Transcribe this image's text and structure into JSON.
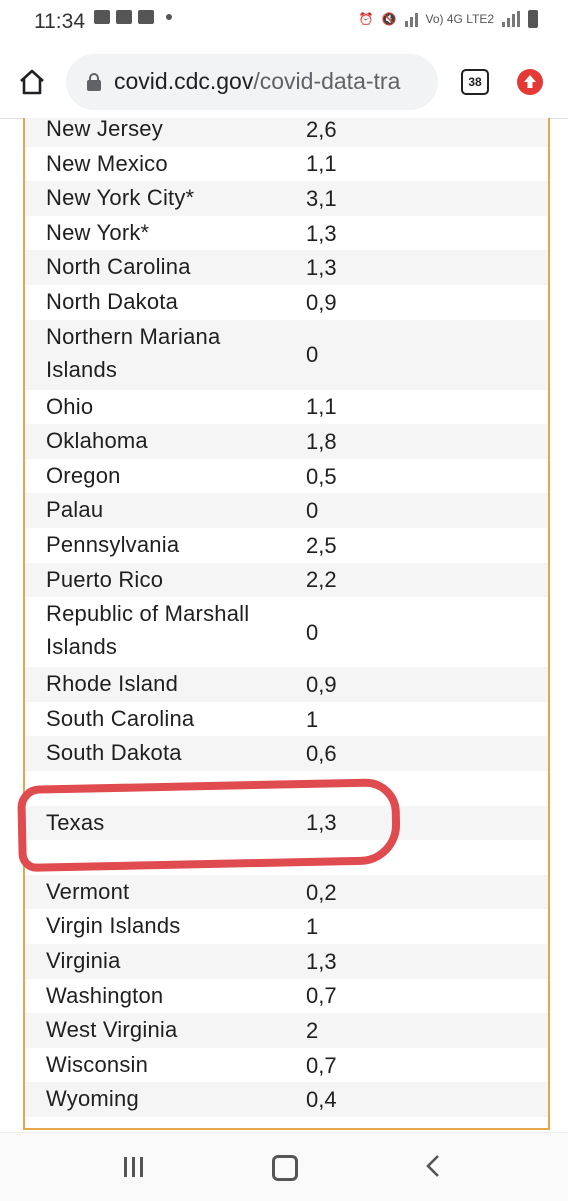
{
  "status_bar": {
    "time": "11:34",
    "network": "Vo) 4G LTE2"
  },
  "browser": {
    "url_domain": "covid.cdc.gov",
    "url_path": "/covid-data-tra",
    "tab_count": "38"
  },
  "table": {
    "rows": [
      {
        "name": "New Jersey",
        "value": "2,6"
      },
      {
        "name": "New Mexico",
        "value": "1,1"
      },
      {
        "name": "New York City*",
        "value": "3,1"
      },
      {
        "name": "New York*",
        "value": "1,3"
      },
      {
        "name": "North Carolina",
        "value": "1,3"
      },
      {
        "name": "North Dakota",
        "value": "0,9"
      },
      {
        "name": "Northern Mariana",
        "name2": "Islands",
        "value": "0"
      },
      {
        "name": "Ohio",
        "value": "1,1"
      },
      {
        "name": "Oklahoma",
        "value": "1,8"
      },
      {
        "name": "Oregon",
        "value": "0,5"
      },
      {
        "name": "Palau",
        "value": "0"
      },
      {
        "name": "Pennsylvania",
        "value": "2,5"
      },
      {
        "name": "Puerto Rico",
        "value": "2,2"
      },
      {
        "name": "Republic of Marshall",
        "name2": "Islands",
        "value": "0"
      },
      {
        "name": "Rhode Island",
        "value": "0,9"
      },
      {
        "name": "South Carolina",
        "value": "1"
      },
      {
        "name": "South Dakota",
        "value": "0,6"
      },
      {
        "name": "",
        "value": ""
      },
      {
        "name": "Texas",
        "value": "1,3"
      },
      {
        "name": "",
        "value": ""
      },
      {
        "name": "Vermont",
        "value": "0,2"
      },
      {
        "name": "Virgin Islands",
        "value": "1"
      },
      {
        "name": "Virginia",
        "value": "1,3"
      },
      {
        "name": "Washington",
        "value": "0,7"
      },
      {
        "name": "West Virginia",
        "value": "2"
      },
      {
        "name": "Wisconsin",
        "value": "0,7"
      },
      {
        "name": "Wyoming",
        "value": "0,4"
      }
    ]
  },
  "colors": {
    "annotation": "#e04b50",
    "table_border": "#e4a54b",
    "row_alt": "#f5f5f5"
  },
  "icons": [
    "home-icon",
    "lock-icon",
    "tabs-icon",
    "update-icon",
    "recent-apps-icon",
    "home-nav-icon",
    "back-icon"
  ]
}
